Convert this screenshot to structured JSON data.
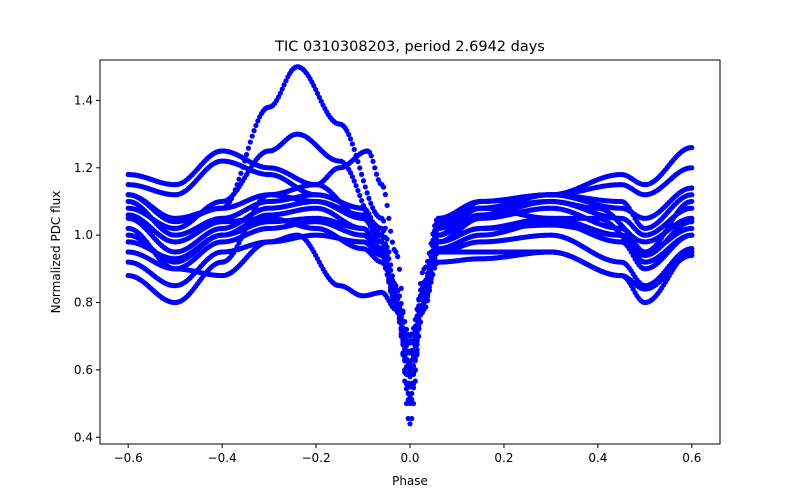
{
  "chart_data": {
    "type": "scatter",
    "title": "TIC 0310308203, period 2.6942 days",
    "xlabel": "Phase",
    "ylabel": "Normalized PDC flux",
    "xlim": [
      -0.66,
      0.66
    ],
    "ylim": [
      0.38,
      1.52
    ],
    "xticks": [
      -0.6,
      -0.4,
      -0.2,
      0.0,
      0.2,
      0.4,
      0.6
    ],
    "xtick_labels": [
      "−0.6",
      "−0.4",
      "−0.2",
      "0.0",
      "0.2",
      "0.4",
      "0.6"
    ],
    "yticks": [
      0.4,
      0.6,
      0.8,
      1.0,
      1.2,
      1.4
    ],
    "ytick_labels": [
      "0.4",
      "0.6",
      "0.8",
      "1.0",
      "1.2",
      "1.4"
    ],
    "grid": false,
    "marker_color": "#0000ff",
    "series": [
      {
        "x": [
          -0.6,
          -0.5,
          -0.4,
          -0.3,
          -0.24,
          -0.15,
          -0.06,
          -0.03,
          0.0,
          0.03,
          0.06,
          0.15,
          0.3,
          0.4,
          0.5,
          0.6
        ],
        "y": [
          1.12,
          1.05,
          1.08,
          1.38,
          1.5,
          1.33,
          1.05,
          0.85,
          0.44,
          0.85,
          1.0,
          1.08,
          1.05,
          1.05,
          0.95,
          1.1
        ]
      },
      {
        "x": [
          -0.6,
          -0.5,
          -0.4,
          -0.3,
          -0.24,
          -0.15,
          -0.06,
          -0.03,
          0.0,
          0.03,
          0.06,
          0.15,
          0.3,
          0.4,
          0.5,
          0.6
        ],
        "y": [
          1.08,
          1.02,
          1.1,
          1.25,
          1.3,
          1.22,
          1.0,
          0.8,
          0.5,
          0.82,
          1.0,
          1.06,
          1.1,
          1.08,
          0.98,
          1.05
        ]
      },
      {
        "x": [
          -0.6,
          -0.5,
          -0.4,
          -0.3,
          -0.2,
          -0.15,
          -0.09,
          -0.06,
          -0.03,
          0.0,
          0.03,
          0.06,
          0.15,
          0.3,
          0.45,
          0.5,
          0.6
        ],
        "y": [
          1.18,
          1.15,
          1.25,
          1.2,
          1.15,
          1.2,
          1.25,
          1.15,
          0.95,
          0.6,
          0.9,
          1.05,
          1.1,
          1.12,
          1.18,
          1.15,
          1.26
        ]
      },
      {
        "x": [
          -0.6,
          -0.5,
          -0.4,
          -0.3,
          -0.2,
          -0.1,
          -0.06,
          -0.03,
          0.0,
          0.03,
          0.06,
          0.15,
          0.3,
          0.45,
          0.5,
          0.6
        ],
        "y": [
          1.15,
          1.12,
          1.22,
          1.18,
          1.12,
          1.08,
          1.0,
          0.82,
          0.55,
          0.82,
          1.0,
          1.1,
          1.12,
          1.15,
          1.12,
          1.2
        ]
      },
      {
        "x": [
          -0.6,
          -0.5,
          -0.4,
          -0.3,
          -0.2,
          -0.1,
          -0.06,
          -0.03,
          0.0,
          0.03,
          0.06,
          0.15,
          0.3,
          0.45,
          0.5,
          0.6
        ],
        "y": [
          1.05,
          0.95,
          1.02,
          1.08,
          1.1,
          1.05,
          0.98,
          0.8,
          0.6,
          0.85,
          1.02,
          1.08,
          1.1,
          1.05,
          1.0,
          1.08
        ]
      },
      {
        "x": [
          -0.6,
          -0.5,
          -0.4,
          -0.3,
          -0.2,
          -0.1,
          -0.06,
          -0.03,
          0.0,
          0.03,
          0.06,
          0.15,
          0.3,
          0.45,
          0.5,
          0.6
        ],
        "y": [
          1.0,
          0.92,
          1.0,
          1.06,
          1.08,
          1.02,
          0.95,
          0.78,
          0.58,
          0.8,
          0.98,
          1.05,
          1.08,
          1.02,
          0.95,
          1.02
        ]
      },
      {
        "x": [
          -0.6,
          -0.5,
          -0.4,
          -0.3,
          -0.2,
          -0.1,
          -0.06,
          -0.03,
          0.0,
          0.03,
          0.06,
          0.15,
          0.3,
          0.45,
          0.5,
          0.6
        ],
        "y": [
          0.95,
          0.9,
          0.98,
          1.02,
          1.04,
          1.0,
          0.95,
          0.8,
          0.65,
          0.85,
          0.98,
          1.02,
          1.05,
          1.0,
          0.92,
          1.0
        ]
      },
      {
        "x": [
          -0.6,
          -0.5,
          -0.4,
          -0.3,
          -0.2,
          -0.1,
          -0.06,
          -0.03,
          0.0,
          0.03,
          0.06,
          0.15,
          0.3,
          0.45,
          0.5,
          0.6
        ],
        "y": [
          1.1,
          1.0,
          1.05,
          1.1,
          1.12,
          1.08,
          1.0,
          0.82,
          0.62,
          0.85,
          1.03,
          1.1,
          1.12,
          1.1,
          1.02,
          1.12
        ]
      },
      {
        "x": [
          -0.6,
          -0.5,
          -0.4,
          -0.3,
          -0.2,
          -0.1,
          -0.06,
          -0.03,
          0.0,
          0.03,
          0.06,
          0.15,
          0.3,
          0.45,
          0.5,
          0.6
        ],
        "y": [
          0.88,
          0.8,
          0.92,
          1.12,
          1.15,
          1.05,
          0.98,
          0.82,
          0.6,
          0.82,
          0.95,
          0.95,
          0.95,
          0.88,
          0.8,
          0.95
        ]
      },
      {
        "x": [
          -0.6,
          -0.5,
          -0.4,
          -0.3,
          -0.2,
          -0.1,
          -0.06,
          -0.03,
          0.0,
          0.03,
          0.06,
          0.15,
          0.3,
          0.45,
          0.5,
          0.6
        ],
        "y": [
          0.92,
          0.85,
          0.95,
          0.98,
          1.0,
          0.98,
          0.94,
          0.8,
          0.55,
          0.8,
          0.95,
          0.98,
          1.0,
          0.92,
          0.85,
          0.96
        ]
      },
      {
        "x": [
          -0.6,
          -0.5,
          -0.4,
          -0.3,
          -0.24,
          -0.15,
          -0.1,
          -0.06,
          -0.03,
          0.0,
          0.03,
          0.06,
          0.15,
          0.3,
          0.45,
          0.5,
          0.6
        ],
        "y": [
          1.02,
          0.9,
          0.88,
          0.98,
          1.0,
          0.85,
          0.82,
          0.83,
          0.78,
          0.6,
          0.8,
          0.92,
          0.93,
          0.95,
          0.88,
          0.84,
          0.94
        ]
      },
      {
        "x": [
          -0.6,
          -0.5,
          -0.4,
          -0.3,
          -0.2,
          -0.1,
          -0.06,
          -0.03,
          0.0,
          0.03,
          0.06,
          0.15,
          0.3,
          0.45,
          0.5,
          0.6
        ],
        "y": [
          1.06,
          0.98,
          1.04,
          1.05,
          1.02,
          0.96,
          0.92,
          0.8,
          0.68,
          0.84,
          0.98,
          1.02,
          1.03,
          1.0,
          0.94,
          1.04
        ]
      },
      {
        "x": [
          -0.6,
          -0.5,
          -0.4,
          -0.3,
          -0.2,
          -0.1,
          -0.06,
          -0.03,
          0.0,
          0.03,
          0.06,
          0.15,
          0.3,
          0.45,
          0.5,
          0.6
        ],
        "y": [
          1.12,
          1.04,
          1.08,
          1.12,
          1.1,
          1.06,
          1.02,
          0.84,
          0.7,
          0.86,
          1.04,
          1.08,
          1.12,
          1.08,
          1.05,
          1.14
        ]
      },
      {
        "x": [
          -0.6,
          -0.5,
          -0.4,
          -0.3,
          -0.2,
          -0.1,
          -0.06,
          -0.03,
          0.0,
          0.03,
          0.06,
          0.15,
          0.3,
          0.45,
          0.5,
          0.6
        ],
        "y": [
          0.98,
          0.93,
          1.0,
          1.04,
          1.05,
          1.02,
          0.96,
          0.78,
          0.52,
          0.78,
          0.96,
          1.0,
          1.04,
          0.98,
          0.9,
          1.0
        ]
      }
    ]
  }
}
